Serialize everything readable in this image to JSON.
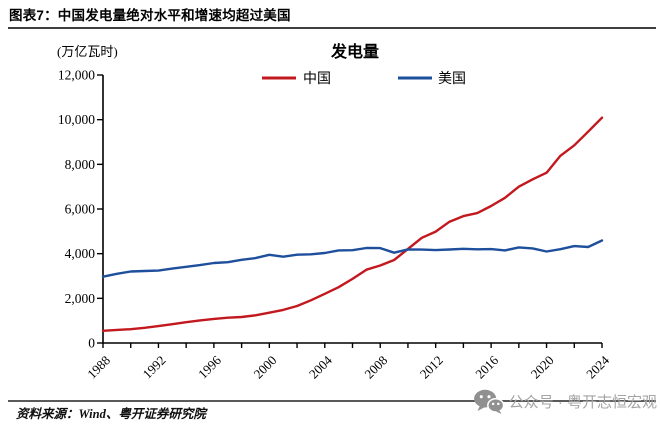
{
  "header": {
    "title": "图表7：中国发电量绝对水平和增速均超过美国"
  },
  "chart_data": {
    "type": "line",
    "title": "发电量",
    "ylabel": "(万亿瓦时)",
    "xlabel": "",
    "grid": false,
    "legend_position": "top-center",
    "xlim": [
      1988,
      2024
    ],
    "ylim": [
      0,
      12000
    ],
    "yticks": [
      0,
      2000,
      4000,
      6000,
      8000,
      10000,
      12000
    ],
    "ytick_labels": [
      "0",
      "2,000",
      "4,000",
      "6,000",
      "8,000",
      "10,000",
      "12,000"
    ],
    "xticks_labeled": [
      1988,
      1992,
      1996,
      2000,
      2004,
      2008,
      2012,
      2016,
      2020,
      2024
    ],
    "xtick_minor_step": 2,
    "x": [
      1988,
      1989,
      1990,
      1991,
      1992,
      1993,
      1994,
      1995,
      1996,
      1997,
      1998,
      1999,
      2000,
      2001,
      2002,
      2003,
      2004,
      2005,
      2006,
      2007,
      2008,
      2009,
      2010,
      2011,
      2012,
      2013,
      2014,
      2015,
      2016,
      2017,
      2018,
      2019,
      2020,
      2021,
      2022,
      2023,
      2024
    ],
    "series": [
      {
        "name": "中国",
        "color": "#c3181e",
        "values": [
          545,
          585,
          620,
          680,
          755,
          840,
          930,
          1010,
          1080,
          1135,
          1165,
          1240,
          1355,
          1480,
          1655,
          1910,
          2205,
          2500,
          2870,
          3280,
          3470,
          3715,
          4210,
          4710,
          4990,
          5430,
          5680,
          5815,
          6135,
          6500,
          7000,
          7330,
          7625,
          8380,
          8850,
          9460,
          10090
        ]
      },
      {
        "name": "美国",
        "color": "#1e4f9c",
        "values": [
          2970,
          3100,
          3200,
          3225,
          3240,
          3330,
          3410,
          3490,
          3580,
          3620,
          3725,
          3800,
          3950,
          3865,
          3955,
          3970,
          4030,
          4145,
          4155,
          4255,
          4250,
          4045,
          4190,
          4180,
          4160,
          4185,
          4220,
          4195,
          4205,
          4145,
          4280,
          4235,
          4095,
          4200,
          4340,
          4300,
          4590
        ]
      }
    ]
  },
  "footer": {
    "source": "资料来源：Wind、粤开证券研究院",
    "watermark": {
      "icon": "wechat-icon",
      "text": "公众号 · 粤开志恒宏观"
    }
  }
}
